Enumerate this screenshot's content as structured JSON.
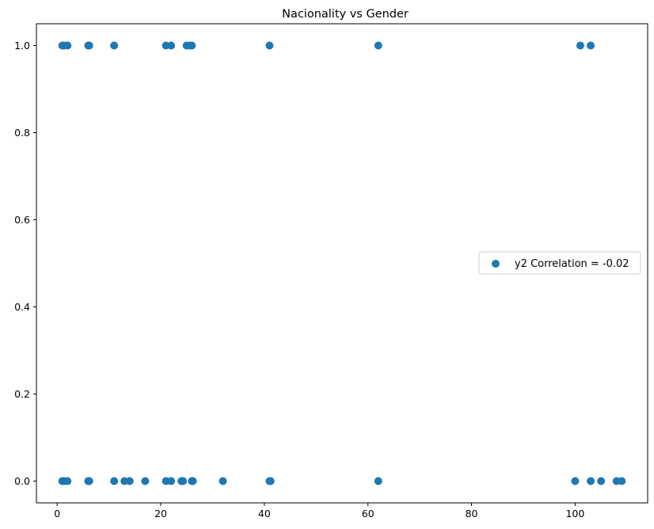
{
  "chart_data": {
    "type": "scatter",
    "title": "Nacionality vs Gender",
    "xlabel": "",
    "ylabel": "",
    "xlim": [
      -4,
      114
    ],
    "ylim": [
      -0.05,
      1.05
    ],
    "xticks": [
      0,
      20,
      40,
      60,
      80,
      100
    ],
    "yticks": [
      0.0,
      0.2,
      0.4,
      0.6,
      0.8,
      1.0
    ],
    "xtick_labels": [
      "0",
      "20",
      "40",
      "60",
      "80",
      "100"
    ],
    "ytick_labels": [
      "0.0",
      "0.2",
      "0.4",
      "0.6",
      "0.8",
      "1.0"
    ],
    "grid": false,
    "legend_position": "center-right",
    "marker_color": "#1f77b4",
    "series": [
      {
        "name": "y2 Correlation = -0.02",
        "x": [
          1,
          1.3,
          2,
          6,
          6.2,
          11,
          21,
          22,
          25,
          25.7,
          26,
          41,
          62,
          101,
          103,
          1,
          1.3,
          2,
          6,
          6.2,
          11,
          13,
          14,
          17,
          21,
          22,
          24,
          24.3,
          26,
          26.2,
          32,
          41,
          41.2,
          62,
          100,
          103,
          105,
          108,
          109
        ],
        "y": [
          1,
          1,
          1,
          1,
          1,
          1,
          1,
          1,
          1,
          1,
          1,
          1,
          1,
          1,
          1,
          0,
          0,
          0,
          0,
          0,
          0,
          0,
          0,
          0,
          0,
          0,
          0,
          0,
          0,
          0,
          0,
          0,
          0,
          0,
          0,
          0,
          0,
          0,
          0
        ]
      }
    ]
  }
}
